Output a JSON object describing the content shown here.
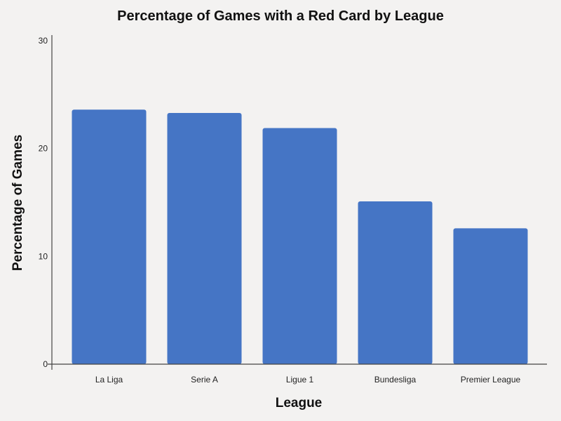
{
  "chart_data": {
    "type": "bar",
    "title": "Percentage of Games with a Red Card by League",
    "xlabel": "League",
    "ylabel": "Percentage of Games",
    "categories": [
      "La Liga",
      "Serie A",
      "Ligue 1",
      "Bundesliga",
      "Premier League"
    ],
    "values": [
      23.6,
      23.3,
      21.9,
      15.1,
      12.6
    ],
    "ylim": [
      0,
      30
    ],
    "yticks": [
      "0",
      "10",
      "20",
      "30"
    ],
    "grid": false,
    "legend": "none",
    "bar_color": "#4575c5"
  }
}
